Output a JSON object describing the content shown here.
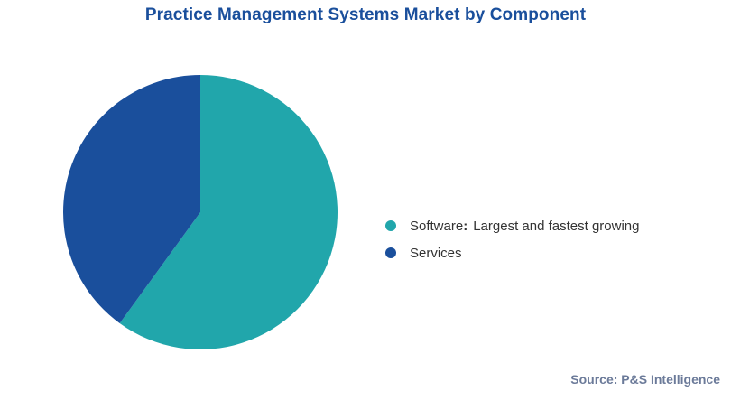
{
  "title": "Practice Management Systems Market by Component",
  "chart_data": {
    "type": "pie",
    "title": "Practice Management Systems Market by Component",
    "slices": [
      {
        "label": "Software",
        "value": 60,
        "color": "#21a6ab"
      },
      {
        "label": "Services",
        "value": 40,
        "color": "#1a4f9c"
      }
    ],
    "legend": [
      {
        "name": "Software",
        "separator": ":",
        "note": "Largest and fastest growing",
        "color": "#21a6ab"
      },
      {
        "name": "Services",
        "separator": "",
        "note": "",
        "color": "#1a4f9c"
      }
    ],
    "legend_position": "right"
  },
  "source": "Source: P&S Intelligence"
}
